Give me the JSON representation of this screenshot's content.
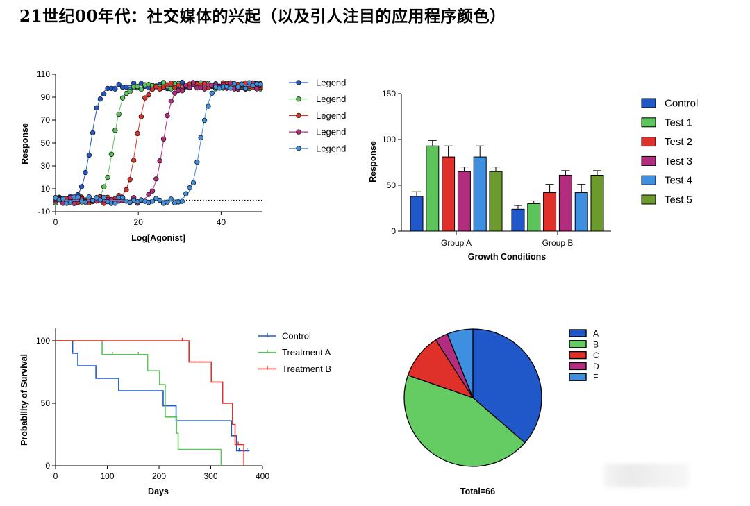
{
  "page": {
    "title": "21世纪00年代：社交媒体的兴起（以及引人注目的应用程序颜色）"
  },
  "chart_data": [
    {
      "type": "scatter",
      "title": "",
      "xlabel": "Log[Agonist]",
      "ylabel": "Response",
      "xlim": [
        0,
        50
      ],
      "ylim": [
        -10,
        110
      ],
      "xticks": [
        "0",
        "20",
        "40"
      ],
      "yticks": [
        "110",
        "90",
        "70",
        "50",
        "30",
        "10",
        "-10"
      ],
      "baseline": 0,
      "series": [
        {
          "name": "Legend",
          "color": "#2057c9",
          "ec50": 8.5
        },
        {
          "name": "Legend",
          "color": "#5cc45a",
          "ec50": 14
        },
        {
          "name": "Legend",
          "color": "#d9322b",
          "ec50": 19.5
        },
        {
          "name": "Legend",
          "color": "#b22d7e",
          "ec50": 26
        },
        {
          "name": "Legend",
          "color": "#3f8fe0",
          "ec50": 35
        }
      ]
    },
    {
      "type": "bar",
      "title": "",
      "xlabel": "Growth Conditions",
      "ylabel": "Response",
      "ylim": [
        0,
        150
      ],
      "yticks": [
        "150",
        "100",
        "50",
        "0"
      ],
      "categories": [
        "Group A",
        "Group B"
      ],
      "series": [
        {
          "name": "Control",
          "color": "#2057c9",
          "values": [
            38,
            24
          ],
          "errors": [
            5,
            4
          ]
        },
        {
          "name": "Test 1",
          "color": "#5cc45a",
          "values": [
            93,
            30
          ],
          "errors": [
            6,
            3
          ]
        },
        {
          "name": "Test 2",
          "color": "#e0302a",
          "values": [
            81,
            42
          ],
          "errors": [
            12,
            9
          ]
        },
        {
          "name": "Test 3",
          "color": "#b22d7e",
          "values": [
            65,
            61
          ],
          "errors": [
            5,
            5
          ]
        },
        {
          "name": "Test 4",
          "color": "#3f8fe0",
          "values": [
            81,
            42
          ],
          "errors": [
            12,
            9
          ]
        },
        {
          "name": "Test 5",
          "color": "#6d9a2e",
          "values": [
            65,
            61
          ],
          "errors": [
            5,
            5
          ]
        }
      ]
    },
    {
      "type": "line",
      "title": "",
      "xlabel": "Days",
      "ylabel": "Probability of Survival",
      "xlim": [
        0,
        400
      ],
      "ylim": [
        0,
        100
      ],
      "xticks": [
        "0",
        "100",
        "200",
        "300",
        "400"
      ],
      "yticks": [
        "100",
        "50",
        "0"
      ],
      "series": [
        {
          "name": "Control",
          "color": "#2057c9",
          "steps": [
            [
              0,
              100
            ],
            [
              33,
              90
            ],
            [
              43,
              80
            ],
            [
              78,
              70
            ],
            [
              122,
              60
            ],
            [
              208,
              48
            ],
            [
              233,
              36
            ],
            [
              340,
              24
            ],
            [
              350,
              12
            ],
            [
              375,
              12
            ]
          ],
          "censored": [
            [
              355,
              12
            ],
            [
              370,
              12
            ]
          ]
        },
        {
          "name": "Treatment A",
          "color": "#5cc45a",
          "steps": [
            [
              0,
              100
            ],
            [
              90,
              89
            ],
            [
              178,
              76
            ],
            [
              201,
              65
            ],
            [
              212,
              39
            ],
            [
              234,
              26
            ],
            [
              237,
              13
            ],
            [
              320,
              0
            ]
          ],
          "censored": [
            [
              110,
              89
            ],
            [
              160,
              89
            ]
          ]
        },
        {
          "name": "Treatment B",
          "color": "#e0302a",
          "steps": [
            [
              0,
              100
            ],
            [
              258,
              83
            ],
            [
              301,
              67
            ],
            [
              323,
              50
            ],
            [
              342,
              33
            ],
            [
              347,
              17
            ],
            [
              364,
              0
            ]
          ],
          "censored": [
            [
              245,
              100
            ],
            [
              353,
              17
            ]
          ]
        }
      ]
    },
    {
      "type": "pie",
      "title": "",
      "total_label": "Total=66",
      "categories": [
        "A",
        "B",
        "C",
        "D",
        "F"
      ],
      "values": [
        24,
        29,
        7,
        2,
        4
      ],
      "colors": [
        "#2057c9",
        "#64cc63",
        "#e0302a",
        "#b22d7e",
        "#3f8fe0"
      ]
    }
  ]
}
